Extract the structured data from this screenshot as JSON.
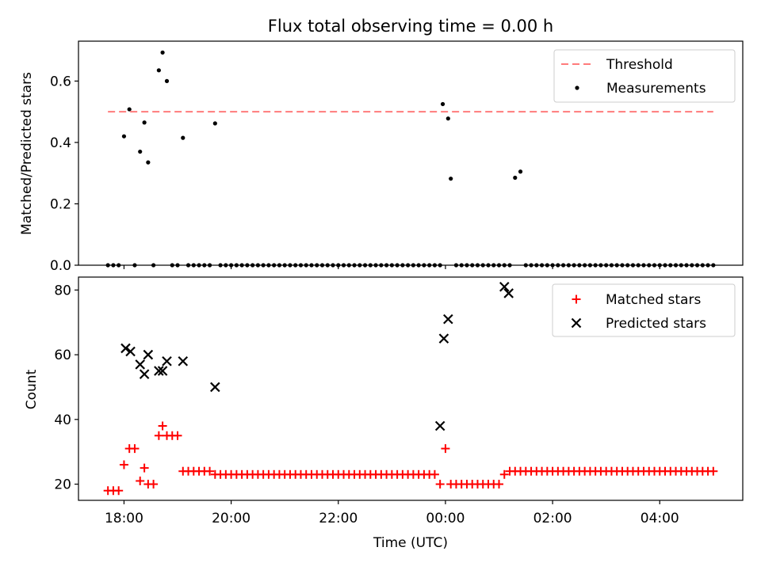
{
  "title": "Flux total observing time = 0.00 h",
  "colors": {
    "threshold": "#ff7b7b",
    "measurements": "#000000",
    "matched": "#ff0000",
    "predicted": "#000000"
  },
  "chart_data": [
    {
      "type": "scatter",
      "ylabel": "Matched/Predicted stars",
      "ylim": [
        0,
        0.73
      ],
      "yticks": [
        0.0,
        0.2,
        0.4,
        0.6
      ],
      "ytick_labels": [
        "0.0",
        "0.2",
        "0.4",
        "0.6"
      ],
      "legend": {
        "placement": "top-right",
        "entries": [
          "Threshold",
          "Measurements"
        ]
      },
      "threshold": {
        "name": "Threshold",
        "value": 0.5,
        "x_range": [
          17.7,
          29.0
        ]
      },
      "measurements": {
        "name": "Measurements",
        "x": [
          17.7,
          17.8,
          17.9,
          18.0,
          18.1,
          18.2,
          18.3,
          18.38,
          18.45,
          18.55,
          18.65,
          18.72,
          18.8,
          18.9,
          19.0,
          19.1,
          19.2,
          19.3,
          19.4,
          19.5,
          19.6,
          19.7,
          19.8,
          19.9,
          20.0,
          20.1,
          20.2,
          20.3,
          20.4,
          20.5,
          20.6,
          20.7,
          20.8,
          20.9,
          21.0,
          21.1,
          21.2,
          21.3,
          21.4,
          21.5,
          21.6,
          21.7,
          21.8,
          21.9,
          22.0,
          22.1,
          22.2,
          22.3,
          22.4,
          22.5,
          22.6,
          22.7,
          22.8,
          22.9,
          23.0,
          23.1,
          23.2,
          23.3,
          23.4,
          23.5,
          23.6,
          23.7,
          23.8,
          23.9,
          23.95,
          24.05,
          24.1,
          24.2,
          24.3,
          24.4,
          24.5,
          24.6,
          24.7,
          24.8,
          24.9,
          25.0,
          25.1,
          25.2,
          25.3,
          25.4,
          25.5,
          25.6,
          25.7,
          25.8,
          25.9,
          26.0,
          26.1,
          26.2,
          26.3,
          26.4,
          26.5,
          26.6,
          26.7,
          26.8,
          26.9,
          27.0,
          27.1,
          27.2,
          27.3,
          27.4,
          27.5,
          27.6,
          27.7,
          27.8,
          27.9,
          28.0,
          28.1,
          28.2,
          28.3,
          28.4,
          28.5,
          28.6,
          28.7,
          28.8,
          28.9,
          29.0
        ],
        "y": [
          0.0,
          0.0,
          0.0,
          0.42,
          0.508,
          0.0,
          0.37,
          0.465,
          0.335,
          0.0,
          0.635,
          0.693,
          0.6,
          0.0,
          0.0,
          0.415,
          0.0,
          0.0,
          0.0,
          0.0,
          0.0,
          0.462,
          0.0,
          0.0,
          0.0,
          0.0,
          0.0,
          0.0,
          0.0,
          0.0,
          0.0,
          0.0,
          0.0,
          0.0,
          0.0,
          0.0,
          0.0,
          0.0,
          0.0,
          0.0,
          0.0,
          0.0,
          0.0,
          0.0,
          0.0,
          0.0,
          0.0,
          0.0,
          0.0,
          0.0,
          0.0,
          0.0,
          0.0,
          0.0,
          0.0,
          0.0,
          0.0,
          0.0,
          0.0,
          0.0,
          0.0,
          0.0,
          0.0,
          0.0,
          0.525,
          0.478,
          0.282,
          0.0,
          0.0,
          0.0,
          0.0,
          0.0,
          0.0,
          0.0,
          0.0,
          0.0,
          0.0,
          0.0,
          0.285,
          0.305,
          0.0,
          0.0,
          0.0,
          0.0,
          0.0,
          0.0,
          0.0,
          0.0,
          0.0,
          0.0,
          0.0,
          0.0,
          0.0,
          0.0,
          0.0,
          0.0,
          0.0,
          0.0,
          0.0,
          0.0,
          0.0,
          0.0,
          0.0,
          0.0,
          0.0,
          0.0,
          0.0,
          0.0,
          0.0,
          0.0,
          0.0,
          0.0,
          0.0,
          0.0,
          0.0,
          0.0
        ]
      }
    },
    {
      "type": "scatter",
      "xlabel": "Time (UTC)",
      "ylabel": "Count",
      "xlim": [
        17.15,
        29.55
      ],
      "ylim": [
        15,
        84
      ],
      "xticks": [
        18,
        20,
        22,
        24,
        26,
        28
      ],
      "xtick_labels": [
        "18:00",
        "20:00",
        "22:00",
        "00:00",
        "02:00",
        "04:00"
      ],
      "yticks": [
        20,
        40,
        60,
        80
      ],
      "ytick_labels": [
        "20",
        "40",
        "60",
        "80"
      ],
      "legend": {
        "placement": "top-right",
        "entries": [
          "Matched stars",
          "Predicted stars"
        ]
      },
      "matched": {
        "name": "Matched stars",
        "x": [
          17.7,
          17.8,
          17.9,
          18.0,
          18.1,
          18.2,
          18.3,
          18.38,
          18.45,
          18.55,
          18.65,
          18.72,
          18.8,
          18.9,
          19.0,
          19.1,
          19.2,
          19.3,
          19.4,
          19.5,
          19.6,
          19.7,
          19.8,
          19.9,
          20.0,
          20.1,
          20.2,
          20.3,
          20.4,
          20.5,
          20.6,
          20.7,
          20.8,
          20.9,
          21.0,
          21.1,
          21.2,
          21.3,
          21.4,
          21.5,
          21.6,
          21.7,
          21.8,
          21.9,
          22.0,
          22.1,
          22.2,
          22.3,
          22.4,
          22.5,
          22.6,
          22.7,
          22.8,
          22.9,
          23.0,
          23.1,
          23.2,
          23.3,
          23.4,
          23.5,
          23.6,
          23.7,
          23.8,
          23.9,
          24.0,
          24.1,
          24.2,
          24.3,
          24.4,
          24.5,
          24.6,
          24.7,
          24.8,
          24.9,
          25.0,
          25.1,
          25.2,
          25.3,
          25.4,
          25.5,
          25.6,
          25.7,
          25.8,
          25.9,
          26.0,
          26.1,
          26.2,
          26.3,
          26.4,
          26.5,
          26.6,
          26.7,
          26.8,
          26.9,
          27.0,
          27.1,
          27.2,
          27.3,
          27.4,
          27.5,
          27.6,
          27.7,
          27.8,
          27.9,
          28.0,
          28.1,
          28.2,
          28.3,
          28.4,
          28.5,
          28.6,
          28.7,
          28.8,
          28.9,
          29.0
        ],
        "y": [
          18,
          18,
          18,
          26,
          31,
          31,
          21,
          25,
          20,
          20,
          35,
          38,
          35,
          35,
          35,
          24,
          24,
          24,
          24,
          24,
          24,
          23,
          23,
          23,
          23,
          23,
          23,
          23,
          23,
          23,
          23,
          23,
          23,
          23,
          23,
          23,
          23,
          23,
          23,
          23,
          23,
          23,
          23,
          23,
          23,
          23,
          23,
          23,
          23,
          23,
          23,
          23,
          23,
          23,
          23,
          23,
          23,
          23,
          23,
          23,
          23,
          23,
          23,
          20,
          31,
          20,
          20,
          20,
          20,
          20,
          20,
          20,
          20,
          20,
          20,
          23,
          24,
          24,
          24,
          24,
          24,
          24,
          24,
          24,
          24,
          24,
          24,
          24,
          24,
          24,
          24,
          24,
          24,
          24,
          24,
          24,
          24,
          24,
          24,
          24,
          24,
          24,
          24,
          24,
          24,
          24,
          24,
          24,
          24,
          24,
          24,
          24,
          24,
          24,
          24
        ]
      },
      "predicted": {
        "name": "Predicted stars",
        "x": [
          18.03,
          18.12,
          18.3,
          18.38,
          18.45,
          18.65,
          18.72,
          18.8,
          19.1,
          19.7,
          23.9,
          23.97,
          24.05,
          25.1,
          25.18
        ],
        "y": [
          62,
          61,
          57,
          54,
          60,
          55,
          55,
          58,
          58,
          50,
          38,
          65,
          71,
          81,
          79
        ]
      }
    }
  ]
}
